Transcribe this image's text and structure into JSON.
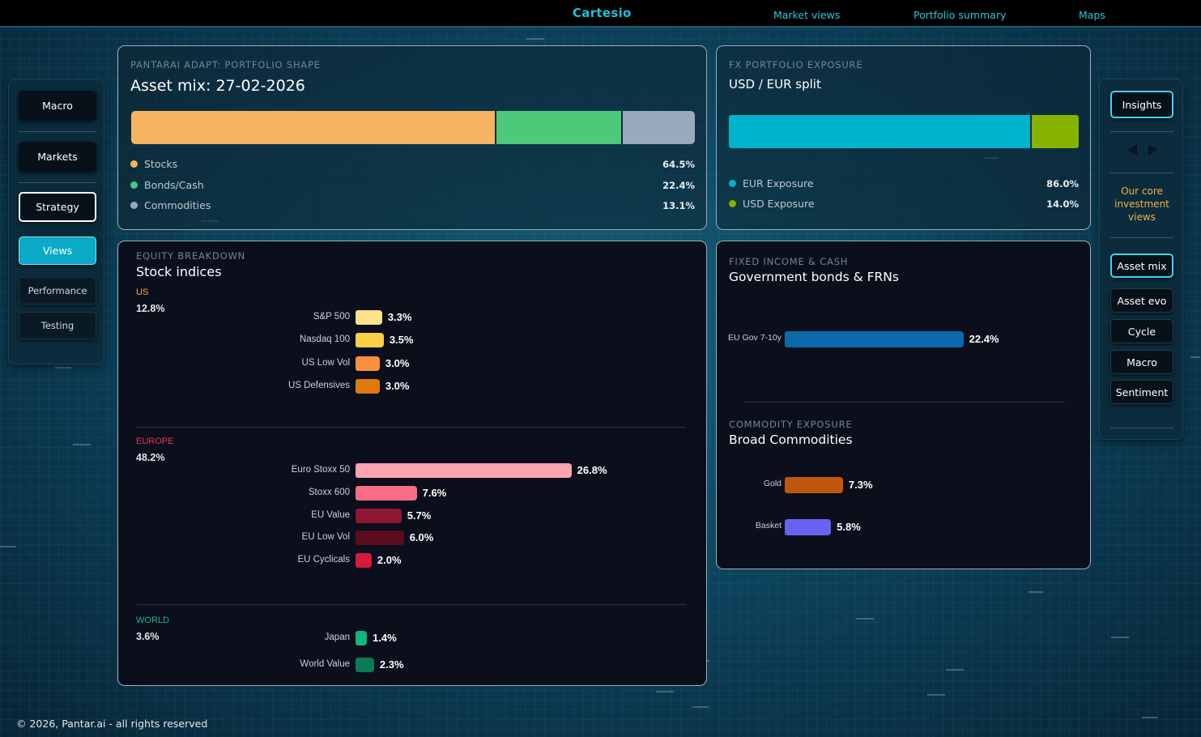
{
  "header": {
    "brand": "Cartesio",
    "nav": [
      "Market views",
      "Portfolio summary",
      "Maps"
    ]
  },
  "left_nav": {
    "macro": "Macro",
    "markets": "Markets",
    "strategy": "Strategy",
    "views": "Views",
    "performance": "Performance",
    "testing": "Testing"
  },
  "right_nav": {
    "insights": "Insights",
    "core_text": "Our core investment views",
    "items": [
      "Asset mix",
      "Asset evo",
      "Cycle",
      "Macro",
      "Sentiment"
    ],
    "active_item": "Asset mix"
  },
  "portfolio_shape": {
    "kicker": "PANTARAI ADAPT: PORTFOLIO SHAPE",
    "title": "Asset mix: 27-02-2026",
    "segments": [
      {
        "label": "Stocks",
        "value": "64.5%",
        "pct": 64.5,
        "color": "#f7b35f"
      },
      {
        "label": "Bonds/Cash",
        "value": "22.4%",
        "pct": 22.4,
        "color": "#4ec97a"
      },
      {
        "label": "Commodities",
        "value": "13.1%",
        "pct": 13.1,
        "color": "#9ba9bd"
      }
    ]
  },
  "fx_exposure": {
    "kicker": "FX PORTFOLIO EXPOSURE",
    "title": "USD / EUR split",
    "segments": [
      {
        "label": "EUR Exposure",
        "value": "86.0%",
        "pct": 86.0,
        "color": "#00b3cc"
      },
      {
        "label": "USD Exposure",
        "value": "14.0%",
        "pct": 14.0,
        "color": "#86b300"
      }
    ]
  },
  "equity": {
    "kicker": "EQUITY BREAKDOWN",
    "title": "Stock indices",
    "regions": [
      {
        "name": "US",
        "total": "12.8%",
        "color": "#f6b04a",
        "items": [
          {
            "label": "S&P 500",
            "value": "3.3%",
            "pct": 3.3,
            "color": "#fde28a"
          },
          {
            "label": "Nasdaq 100",
            "value": "3.5%",
            "pct": 3.5,
            "color": "#f9cf45"
          },
          {
            "label": "US Low Vol",
            "value": "3.0%",
            "pct": 3.0,
            "color": "#f98f3a"
          },
          {
            "label": "US Defensives",
            "value": "3.0%",
            "pct": 3.0,
            "color": "#de7a0b"
          }
        ]
      },
      {
        "name": "EUROPE",
        "total": "48.2%",
        "color": "#e8365b",
        "items": [
          {
            "label": "Euro Stoxx 50",
            "value": "26.8%",
            "pct": 26.8,
            "color": "#fba4b0"
          },
          {
            "label": "Stoxx 600",
            "value": "7.6%",
            "pct": 7.6,
            "color": "#f86c84"
          },
          {
            "label": "EU Value",
            "value": "5.7%",
            "pct": 5.7,
            "color": "#8f1634"
          },
          {
            "label": "EU Low Vol",
            "value": "6.0%",
            "pct": 6.0,
            "color": "#5a0c1e"
          },
          {
            "label": "EU Cyclicals",
            "value": "2.0%",
            "pct": 2.0,
            "color": "#d41a3f"
          }
        ]
      },
      {
        "name": "WORLD",
        "total": "3.6%",
        "color": "#19b98c",
        "items": [
          {
            "label": "Japan",
            "value": "1.4%",
            "pct": 1.4,
            "color": "#10b67e"
          },
          {
            "label": "World Value",
            "value": "2.3%",
            "pct": 2.3,
            "color": "#0d7a56"
          }
        ]
      }
    ]
  },
  "fixed_income": {
    "kicker": "FIXED INCOME & CASH",
    "title": "Government bonds & FRNs",
    "items": [
      {
        "label": "EU Gov 7-10y",
        "value": "22.4%",
        "pct": 22.4,
        "color": "#0b69ac"
      }
    ]
  },
  "commodities": {
    "kicker": "COMMODITY EXPOSURE",
    "title": "Broad Commodities",
    "items": [
      {
        "label": "Gold",
        "value": "7.3%",
        "pct": 7.3,
        "color": "#c0570c"
      },
      {
        "label": "Basket",
        "value": "5.8%",
        "pct": 5.8,
        "color": "#6a62f0"
      }
    ]
  },
  "footer": "© 2026, Pantar.ai - all rights reserved"
}
